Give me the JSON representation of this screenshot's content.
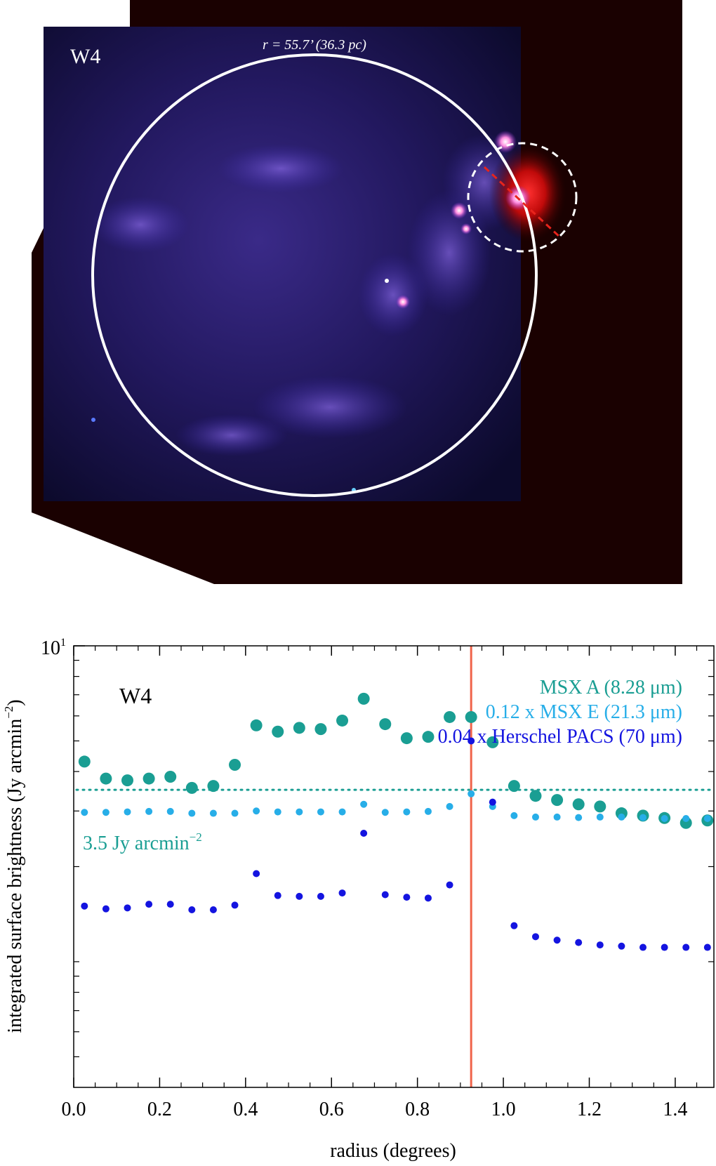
{
  "image_panel": {
    "label": "W4",
    "radius_label": "r = 55.7’ (36.3 pc)",
    "colors": {
      "circle": "#ffffff",
      "secondary_circle": "#ffffff",
      "cut_line": "#e8241c"
    }
  },
  "chart_data": {
    "type": "scatter",
    "panel_label": "W4",
    "xlabel": "radius (degrees)",
    "ylabel": "integrated surface brightness (Jy arcmin",
    "ylabel_sup": "−2",
    "ylabel_close": ")",
    "xlim": [
      0.0,
      1.49
    ],
    "ylim": [
      0.4,
      10
    ],
    "yscale": "log",
    "x_ticks": [
      "0.0",
      "0.2",
      "0.4",
      "0.6",
      "0.8",
      "1.0",
      "1.2",
      "1.4"
    ],
    "y_tick_label": "10",
    "y_tick_sup": "1",
    "x": [
      0.025,
      0.075,
      0.125,
      0.175,
      0.225,
      0.275,
      0.325,
      0.375,
      0.425,
      0.475,
      0.525,
      0.575,
      0.625,
      0.675,
      0.725,
      0.775,
      0.825,
      0.875,
      0.925,
      0.975,
      1.025,
      1.075,
      1.125,
      1.175,
      1.225,
      1.275,
      1.325,
      1.375,
      1.425,
      1.475
    ],
    "series": [
      {
        "name": "MSX A (8.28 μm)",
        "color": "#1a9e93",
        "marker": "large",
        "values": [
          4.3,
          3.8,
          3.75,
          3.8,
          3.85,
          3.55,
          3.6,
          4.2,
          5.6,
          5.35,
          5.5,
          5.45,
          5.8,
          6.8,
          5.65,
          5.1,
          5.15,
          5.95,
          5.95,
          4.95,
          3.6,
          3.35,
          3.25,
          3.15,
          3.1,
          2.95,
          2.9,
          2.85,
          2.75,
          2.8
        ]
      },
      {
        "name": "0.12 x MSX E (21.3 μm)",
        "color": "#27aee8",
        "marker": "small",
        "values": [
          2.97,
          2.97,
          2.98,
          2.99,
          2.99,
          2.95,
          2.95,
          2.95,
          3.0,
          2.98,
          2.98,
          2.98,
          2.98,
          3.15,
          2.97,
          2.98,
          2.99,
          3.1,
          3.4,
          3.1,
          2.9,
          2.87,
          2.87,
          2.86,
          2.87,
          2.87,
          2.86,
          2.84,
          2.84,
          2.84
        ]
      },
      {
        "name": "0.04 x Herschel PACS (70 μm)",
        "color": "#1414e0",
        "marker": "small",
        "values": [
          1.5,
          1.47,
          1.48,
          1.52,
          1.52,
          1.46,
          1.46,
          1.51,
          1.9,
          1.62,
          1.61,
          1.61,
          1.65,
          2.55,
          1.63,
          1.6,
          1.59,
          1.75,
          5.0,
          3.2,
          1.3,
          1.2,
          1.17,
          1.15,
          1.13,
          1.12,
          1.11,
          1.11,
          1.11,
          1.11
        ]
      }
    ],
    "reference_line": {
      "y": 3.5,
      "label": "3.5 Jy arcmin",
      "label_sup": "−2",
      "color": "#1a9e93",
      "style": "dotted"
    },
    "vertical_line": {
      "x": 0.925,
      "color": "#f0634a"
    },
    "legend_position": "top-right"
  }
}
